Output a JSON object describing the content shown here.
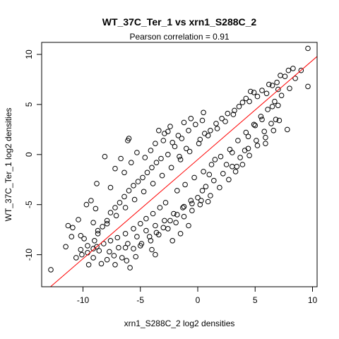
{
  "chart_data": {
    "type": "scatter",
    "title": "WT_37C_Ter_1 vs xrn1_S288C_2",
    "subtitle": "Pearson correlation =  0.91",
    "xlabel": "xrn1_S288C_2 log2 densities",
    "ylabel": "WT_37C_Ter_1 log2 densities",
    "xlim": [
      -13.6,
      10.4
    ],
    "ylim": [
      -13.2,
      11.2
    ],
    "x_ticks": [
      -10,
      -5,
      0,
      5,
      10
    ],
    "y_ticks": [
      -10,
      -5,
      0,
      5,
      10
    ],
    "x_tick_labels": [
      "-10",
      "-5",
      "0",
      "5",
      "10"
    ],
    "y_tick_labels": [
      "-10",
      "-5",
      "0",
      "5",
      "10"
    ],
    "grid": false,
    "legend": "none",
    "point_style": "open-circle",
    "point_color": "#000000",
    "regression_line": {
      "slope": 0.99,
      "intercept": -0.5,
      "color": "#ff0000"
    },
    "points": [
      [
        9.6,
        10.6
      ],
      [
        9.6,
        6.8
      ],
      [
        8.3,
        8.6
      ],
      [
        7.9,
        8.4
      ],
      [
        7.6,
        7.8
      ],
      [
        7.2,
        7.9
      ],
      [
        6.9,
        7.2
      ],
      [
        6.5,
        6.9
      ],
      [
        6.2,
        7.0
      ],
      [
        6.0,
        6.1
      ],
      [
        7.0,
        6.5
      ],
      [
        5.6,
        6.4
      ],
      [
        5.2,
        5.8
      ],
      [
        4.9,
        6.2
      ],
      [
        4.5,
        5.3
      ],
      [
        4.2,
        5.6
      ],
      [
        3.6,
        4.8
      ],
      [
        3.2,
        4.4
      ],
      [
        2.6,
        4.1
      ],
      [
        2.1,
        3.6
      ],
      [
        1.6,
        3.1
      ],
      [
        1.1,
        2.4
      ],
      [
        0.6,
        2.1
      ],
      [
        0.2,
        1.5
      ],
      [
        6.5,
        4.8
      ],
      [
        7.0,
        4.9
      ],
      [
        6.8,
        3.5
      ],
      [
        5.6,
        3.5
      ],
      [
        5.0,
        2.9
      ],
      [
        4.4,
        1.8
      ],
      [
        7.8,
        2.5
      ],
      [
        5.9,
        1.1
      ],
      [
        4.1,
        0.4
      ],
      [
        3.0,
        0.2
      ],
      [
        3.4,
        -1.2
      ],
      [
        2.5,
        -1.0
      ],
      [
        1.5,
        -0.5
      ],
      [
        1.0,
        -2.0
      ],
      [
        0.4,
        -3.6
      ],
      [
        0.0,
        -4.3
      ],
      [
        -0.6,
        -4.6
      ],
      [
        -1.2,
        -5.2
      ],
      [
        -1.8,
        -6.0
      ],
      [
        -2.4,
        -6.6
      ],
      [
        -3.0,
        -7.3
      ],
      [
        -3.6,
        -7.8
      ],
      [
        -4.2,
        -8.2
      ],
      [
        -4.9,
        -8.9
      ],
      [
        -5.4,
        -10.2
      ],
      [
        -5.6,
        -9.4
      ],
      [
        -6.6,
        -10.3
      ],
      [
        -6.3,
        -9.3
      ],
      [
        -7.3,
        -10.1
      ],
      [
        -7.9,
        -10.5
      ],
      [
        -8.4,
        -10.9
      ],
      [
        -12.8,
        -11.5
      ],
      [
        -10.6,
        -10.3
      ],
      [
        -9.5,
        -11.0
      ],
      [
        -9.1,
        -10.3
      ],
      [
        -9.6,
        -9.1
      ],
      [
        -10.2,
        -8.1
      ],
      [
        -9.0,
        -8.6
      ],
      [
        -8.7,
        -7.9
      ],
      [
        -8.3,
        -7.2
      ],
      [
        -7.9,
        -6.6
      ],
      [
        -7.6,
        -5.8
      ],
      [
        -7.2,
        -5.3
      ],
      [
        -6.8,
        -4.8
      ],
      [
        -6.4,
        -4.2
      ],
      [
        -6.0,
        -3.6
      ],
      [
        -5.6,
        -3.1
      ],
      [
        -5.2,
        -2.7
      ],
      [
        -4.8,
        -2.3
      ],
      [
        -4.4,
        -1.8
      ],
      [
        -4.0,
        -1.3
      ],
      [
        -3.6,
        -0.8
      ],
      [
        -3.2,
        -0.4
      ],
      [
        -2.6,
        0.0
      ],
      [
        -2.0,
        0.8
      ],
      [
        -1.4,
        1.6
      ],
      [
        -0.8,
        2.4
      ],
      [
        -0.2,
        3.0
      ],
      [
        0.4,
        3.4
      ],
      [
        -3.0,
        1.4
      ],
      [
        -2.6,
        2.3
      ],
      [
        -3.4,
        2.4
      ],
      [
        -2.2,
        1.2
      ],
      [
        -1.6,
        -0.2
      ],
      [
        -2.9,
        2.1
      ],
      [
        -1.0,
        0.6
      ],
      [
        -6.0,
        1.6
      ],
      [
        -6.1,
        1.4
      ],
      [
        -8.1,
        -0.2
      ],
      [
        -6.7,
        -0.4
      ],
      [
        -7.2,
        -1.4
      ],
      [
        -6.4,
        -1.8
      ],
      [
        -5.8,
        -0.8
      ],
      [
        -5.3,
        0.2
      ],
      [
        -4.6,
        -0.3
      ],
      [
        -4.1,
        0.4
      ],
      [
        -3.7,
        1.1
      ],
      [
        -8.8,
        -2.9
      ],
      [
        -7.6,
        -3.3
      ],
      [
        -9.3,
        -4.6
      ],
      [
        -9.7,
        -5.0
      ],
      [
        -8.9,
        -5.4
      ],
      [
        -9.1,
        -6.8
      ],
      [
        -10.4,
        -6.5
      ],
      [
        -11.3,
        -7.1
      ],
      [
        -10.9,
        -7.3
      ],
      [
        -11.0,
        -8.2
      ],
      [
        -9.9,
        -8.4
      ],
      [
        -11.5,
        -9.2
      ],
      [
        -10.2,
        -9.5
      ],
      [
        -9.1,
        -9.4
      ],
      [
        -8.6,
        -9.6
      ],
      [
        -7.7,
        -9.7
      ],
      [
        -6.9,
        -9.3
      ],
      [
        -6.1,
        -8.9
      ],
      [
        -5.3,
        -8.2
      ],
      [
        -4.5,
        -7.6
      ],
      [
        -3.7,
        -7.1
      ],
      [
        -2.9,
        -6.6
      ],
      [
        -2.1,
        -5.9
      ],
      [
        -1.3,
        -5.3
      ],
      [
        -0.5,
        -4.9
      ],
      [
        0.3,
        -4.6
      ],
      [
        1.1,
        -4.1
      ],
      [
        1.9,
        -3.3
      ],
      [
        2.7,
        -2.5
      ],
      [
        3.3,
        -1.7
      ],
      [
        3.9,
        -1.0
      ],
      [
        4.5,
        -0.1
      ],
      [
        5.2,
        0.9
      ],
      [
        5.9,
        1.7
      ],
      [
        6.6,
        2.4
      ],
      [
        7.1,
        3.4
      ],
      [
        -2.8,
        -4.8
      ],
      [
        -3.3,
        -5.3
      ],
      [
        -3.9,
        -5.9
      ],
      [
        -4.5,
        -6.4
      ],
      [
        -5.0,
        -6.9
      ],
      [
        -5.6,
        -7.4
      ],
      [
        -6.3,
        -7.9
      ],
      [
        -7.0,
        -8.3
      ],
      [
        -7.6,
        -8.6
      ],
      [
        -8.2,
        -8.9
      ],
      [
        -8.8,
        -9.2
      ],
      [
        -9.6,
        -9.8
      ],
      [
        -10.1,
        -10.0
      ],
      [
        -1.8,
        -3.6
      ],
      [
        -1.1,
        -3.0
      ],
      [
        -0.3,
        -2.3
      ],
      [
        0.5,
        -1.7
      ],
      [
        1.2,
        -1.0
      ],
      [
        2.0,
        -0.2
      ],
      [
        2.8,
        0.5
      ],
      [
        3.5,
        1.4
      ],
      [
        4.2,
        2.2
      ],
      [
        4.9,
        3.0
      ],
      [
        5.5,
        3.8
      ],
      [
        6.1,
        4.5
      ],
      [
        6.7,
        5.3
      ],
      [
        7.3,
        5.9
      ],
      [
        8.0,
        6.6
      ],
      [
        8.5,
        7.6
      ],
      [
        9.0,
        8.4
      ],
      [
        4.6,
        6.3
      ],
      [
        3.9,
        5.2
      ],
      [
        3.1,
        4.0
      ],
      [
        2.4,
        3.3
      ],
      [
        1.7,
        2.6
      ],
      [
        0.9,
        1.9
      ],
      [
        0.1,
        1.1
      ],
      [
        -0.7,
        0.3
      ],
      [
        -1.5,
        -0.5
      ],
      [
        -2.3,
        -1.3
      ],
      [
        -3.1,
        -2.1
      ],
      [
        -3.9,
        -2.9
      ],
      [
        -4.7,
        -3.7
      ],
      [
        -5.5,
        -4.5
      ],
      [
        -6.3,
        -5.3
      ],
      [
        -7.1,
        -6.1
      ],
      [
        -7.9,
        -6.9
      ],
      [
        -8.7,
        -7.6
      ],
      [
        1.4,
        -2.6
      ],
      [
        0.7,
        -3.2
      ],
      [
        2.2,
        -1.9
      ],
      [
        3.0,
        -1.2
      ],
      [
        3.7,
        -0.3
      ],
      [
        4.4,
        0.6
      ],
      [
        5.1,
        1.4
      ],
      [
        5.8,
        2.3
      ],
      [
        6.4,
        3.1
      ],
      [
        -4.1,
        -8.6
      ],
      [
        -3.4,
        -8.0
      ],
      [
        -2.6,
        -7.4
      ],
      [
        -1.9,
        -6.8
      ],
      [
        -1.2,
        -6.2
      ],
      [
        -0.5,
        -5.6
      ],
      [
        0.2,
        -5.0
      ],
      [
        0.9,
        -4.7
      ],
      [
        -5.0,
        -9.1
      ],
      [
        -4.0,
        -9.5
      ],
      [
        -6.2,
        -10.6
      ],
      [
        -7.2,
        -11.0
      ],
      [
        -5.9,
        -11.3
      ],
      [
        -3.7,
        -10.0
      ],
      [
        -2.2,
        -8.6
      ],
      [
        -1.5,
        -7.9
      ],
      [
        -0.8,
        -7.1
      ],
      [
        -1.7,
        1.9
      ],
      [
        -0.6,
        3.6
      ],
      [
        0.5,
        4.2
      ],
      [
        -1.2,
        3.2
      ],
      [
        -2.4,
        2.8
      ]
    ]
  }
}
